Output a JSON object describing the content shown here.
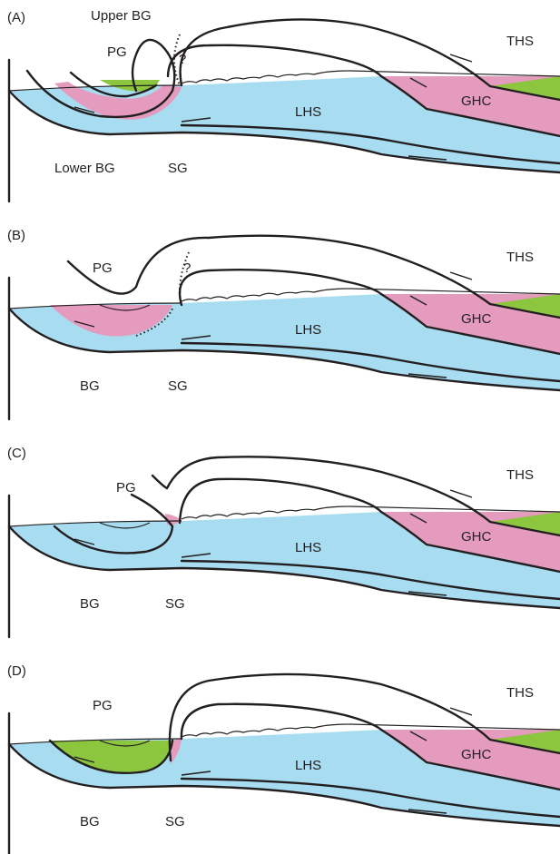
{
  "colors": {
    "lhs": "#a8dcf0",
    "ghc": "#e59bbe",
    "ths": "#8cc63f",
    "line": "#231f20"
  },
  "panels": [
    {
      "id": "A",
      "letter": "(A)",
      "labels": {
        "upper_bg": "Upper BG",
        "pg": "PG",
        "question": "?",
        "ths": "THS",
        "lhs": "LHS",
        "ghc": "GHC",
        "lower_bg": "Lower BG",
        "sg": "SG"
      }
    },
    {
      "id": "B",
      "letter": "(B)",
      "labels": {
        "pg": "PG",
        "question": "?",
        "ths": "THS",
        "lhs": "LHS",
        "ghc": "GHC",
        "bg": "BG",
        "sg": "SG"
      }
    },
    {
      "id": "C",
      "letter": "(C)",
      "labels": {
        "pg": "PG",
        "ths": "THS",
        "lhs": "LHS",
        "ghc": "GHC",
        "bg": "BG",
        "sg": "SG"
      }
    },
    {
      "id": "D",
      "letter": "(D)",
      "labels": {
        "pg": "PG",
        "ths": "THS",
        "lhs": "LHS",
        "ghc": "GHC",
        "bg": "BG",
        "sg": "SG"
      }
    }
  ]
}
